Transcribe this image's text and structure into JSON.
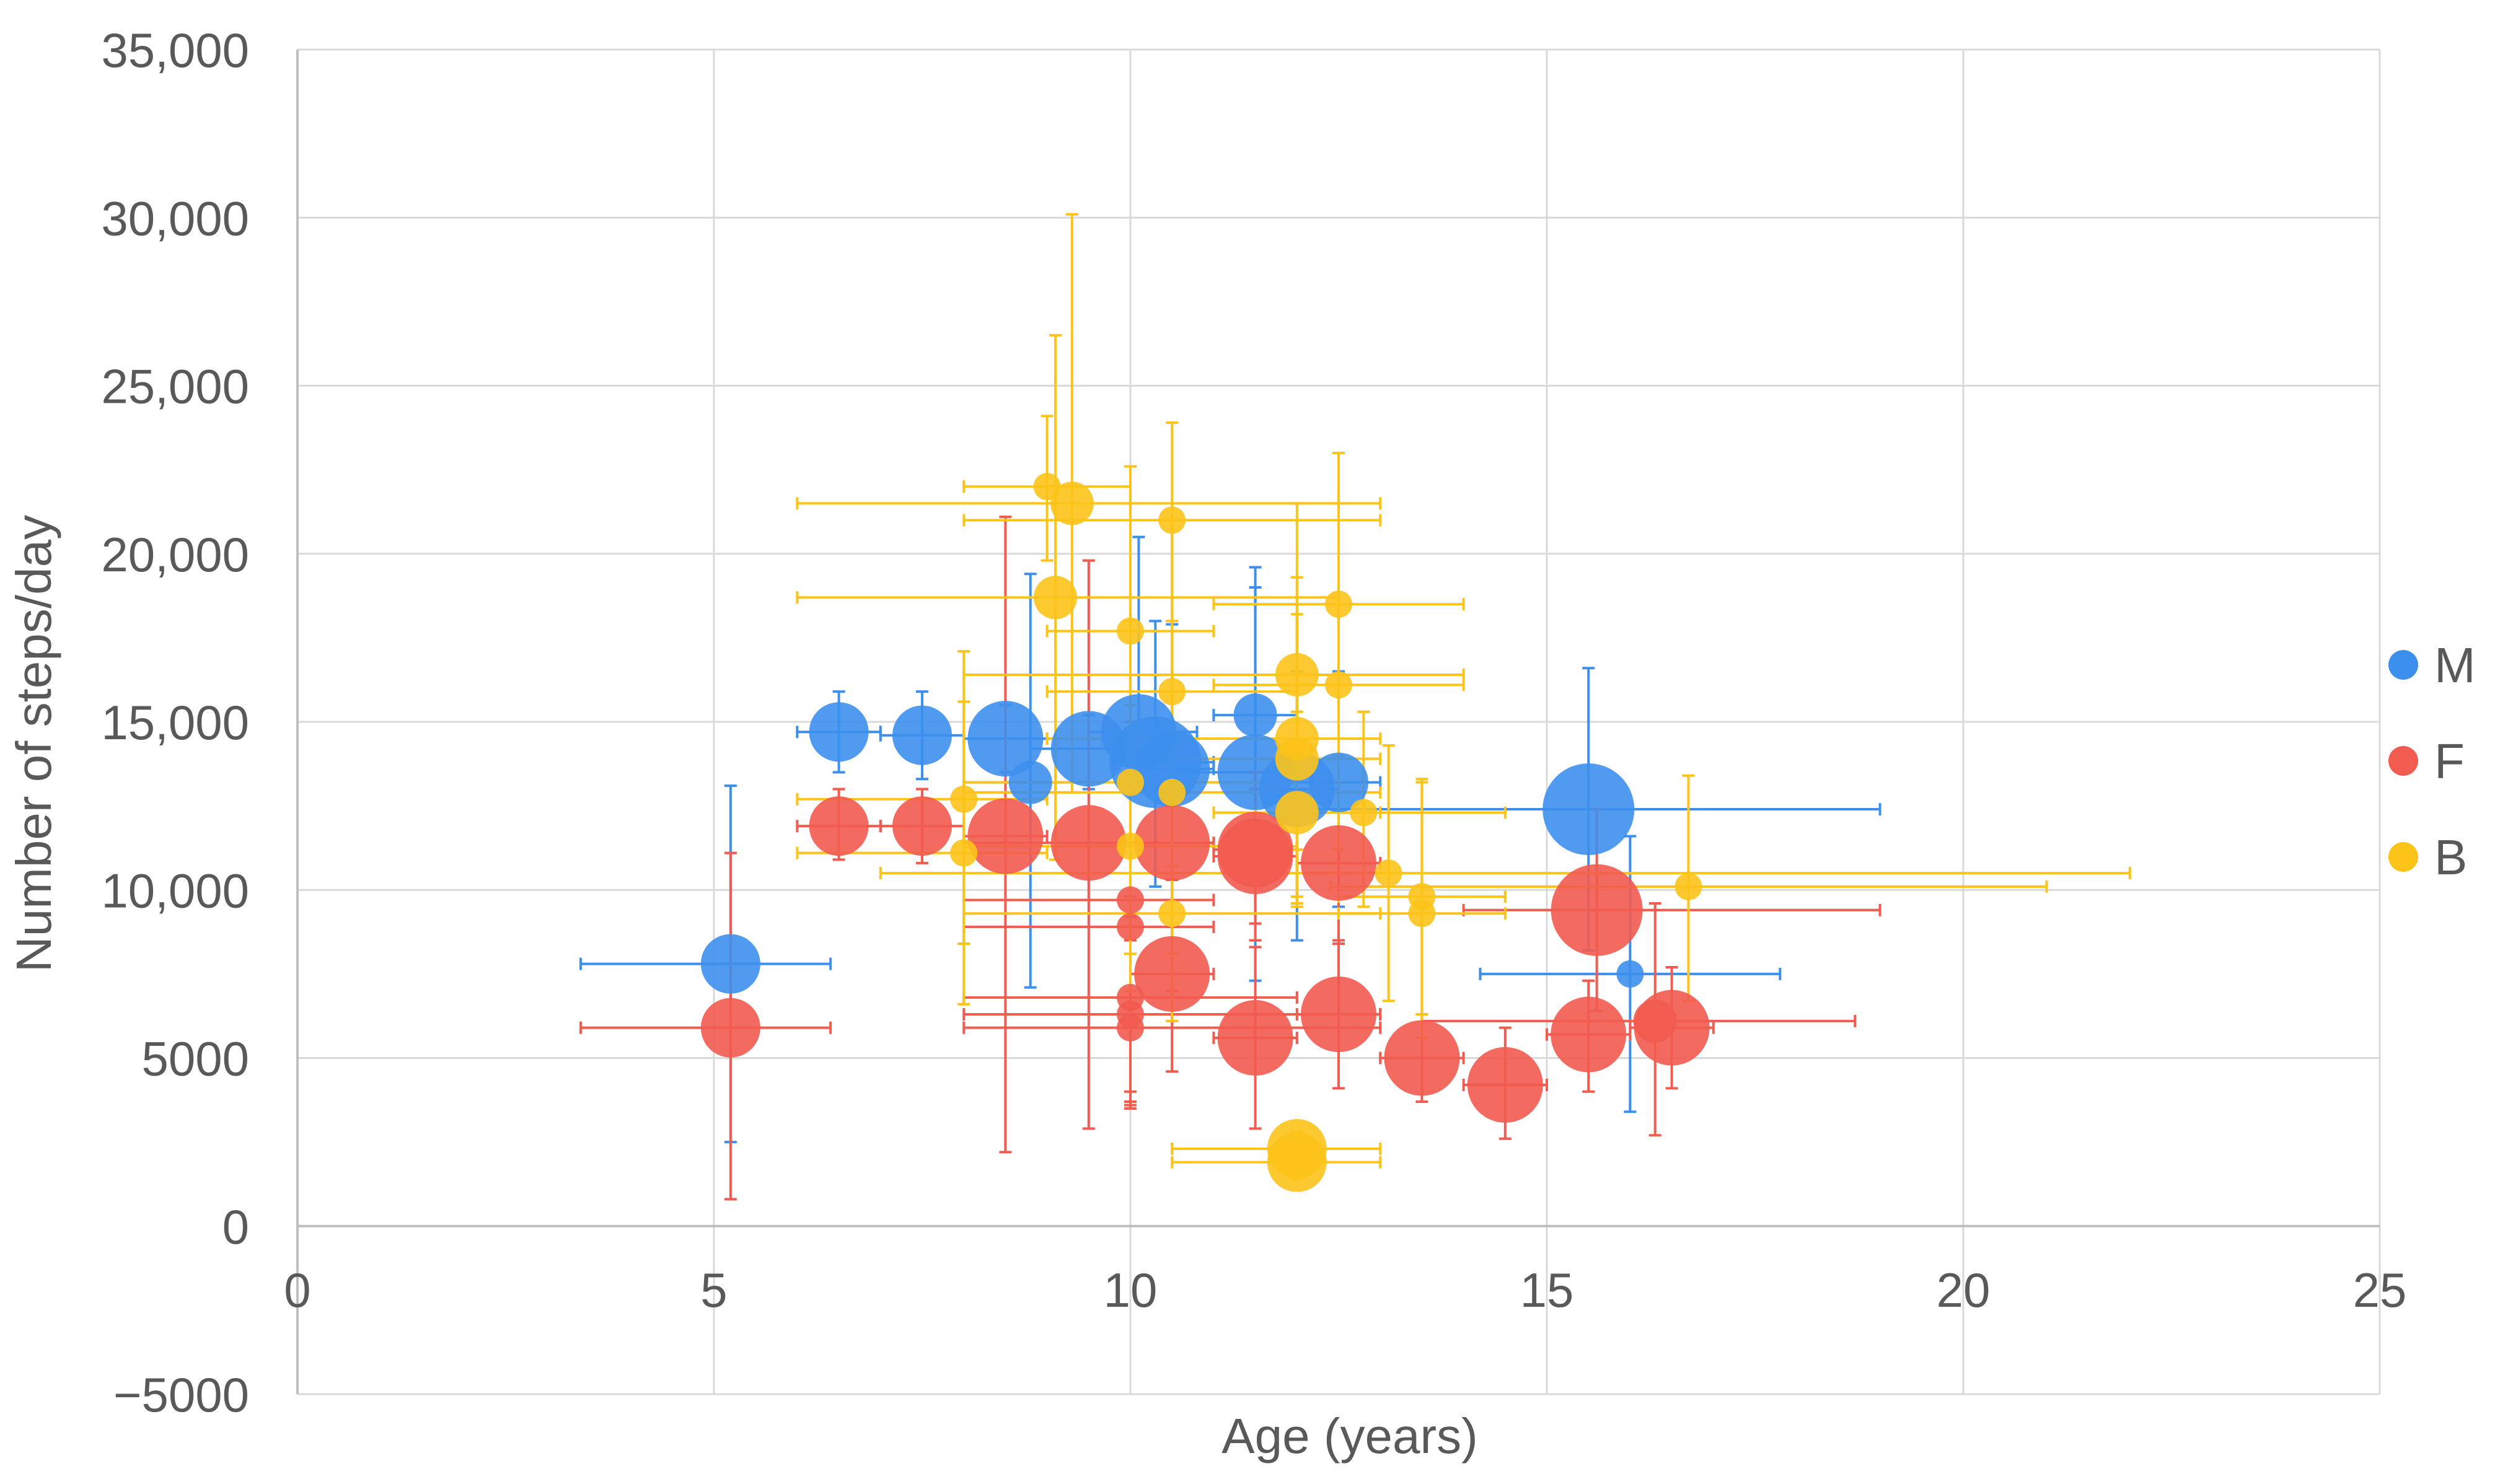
{
  "chart_data": {
    "type": "scatter",
    "title": "",
    "xlabel": "Age (years)",
    "ylabel": "Number of steps/day",
    "xlim": [
      0,
      25
    ],
    "ylim": [
      -5000,
      35000
    ],
    "x_ticks": [
      0,
      5,
      10,
      15,
      20,
      25
    ],
    "x_tick_labels": [
      "0",
      "5",
      "10",
      "15",
      "20",
      "25"
    ],
    "y_ticks": [
      -5000,
      0,
      5000,
      10000,
      15000,
      20000,
      25000,
      30000,
      35000
    ],
    "y_tick_labels": [
      "−5000",
      "0",
      "5000",
      "10,000",
      "15,000",
      "20,000",
      "25,000",
      "30,000",
      "35,000"
    ],
    "grid": true,
    "legend_position": "right",
    "marker": "bubble with x and y error bars",
    "series": [
      {
        "name": "M",
        "color": "#3d8fed",
        "points": [
          {
            "x": 5.2,
            "y": 7800,
            "size": 3,
            "xerr": [
              3.4,
              6.4
            ],
            "yerr": [
              2500,
              13100
            ]
          },
          {
            "x": 6.5,
            "y": 14700,
            "size": 3,
            "xerr": [
              6.0,
              7.0
            ],
            "yerr": [
              13500,
              15900
            ]
          },
          {
            "x": 7.5,
            "y": 14600,
            "size": 3,
            "xerr": [
              7.0,
              8.0
            ],
            "yerr": [
              13300,
              15900
            ]
          },
          {
            "x": 8.5,
            "y": 14500,
            "size": 4,
            "xerr": [
              8.0,
              9.0
            ],
            "yerr": [
              13500,
              15500
            ]
          },
          {
            "x": 8.8,
            "y": 13200,
            "size": 2,
            "xerr": [
              8.0,
              9.5
            ],
            "yerr": [
              7100,
              19400
            ]
          },
          {
            "x": 9.5,
            "y": 14200,
            "size": 4,
            "xerr": [
              8.8,
              10.5
            ],
            "yerr": [
              13000,
              15200
            ]
          },
          {
            "x": 10.1,
            "y": 14700,
            "size": 4,
            "xerr": [
              9.5,
              10.8
            ],
            "yerr": [
              13500,
              20500
            ]
          },
          {
            "x": 10.3,
            "y": 13800,
            "size": 5,
            "xerr": [
              9.8,
              11.0
            ],
            "yerr": [
              10100,
              18000
            ]
          },
          {
            "x": 10.5,
            "y": 13600,
            "size": 4,
            "xerr": [
              10.0,
              11.0
            ],
            "yerr": [
              8900,
              17900
            ]
          },
          {
            "x": 11.5,
            "y": 15200,
            "size": 2,
            "xerr": [
              11.0,
              12.0
            ],
            "yerr": [
              11300,
              19600
            ]
          },
          {
            "x": 11.5,
            "y": 13500,
            "size": 4,
            "xerr": [
              10.5,
              12.0
            ],
            "yerr": [
              7300,
              19000
            ]
          },
          {
            "x": 12.0,
            "y": 13000,
            "size": 4,
            "xerr": [
              11.5,
              12.5
            ],
            "yerr": [
              8500,
              16500
            ]
          },
          {
            "x": 12.5,
            "y": 13200,
            "size": 3,
            "xerr": [
              12.0,
              13.0
            ],
            "yerr": [
              9500,
              16500
            ]
          },
          {
            "x": 15.5,
            "y": 12400,
            "size": 5,
            "xerr": [
              11.8,
              19.0
            ],
            "yerr": [
              8200,
              16600
            ]
          },
          {
            "x": 16.0,
            "y": 7500,
            "size": 1,
            "xerr": [
              14.2,
              17.8
            ],
            "yerr": [
              3400,
              11600
            ]
          }
        ]
      },
      {
        "name": "F",
        "color": "#f25b4f",
        "points": [
          {
            "x": 5.2,
            "y": 5900,
            "size": 3,
            "xerr": [
              3.4,
              6.4
            ],
            "yerr": [
              800,
              11100
            ]
          },
          {
            "x": 6.5,
            "y": 11900,
            "size": 3,
            "xerr": [
              6.0,
              7.0
            ],
            "yerr": [
              10900,
              13000
            ]
          },
          {
            "x": 7.5,
            "y": 11900,
            "size": 3,
            "xerr": [
              7.0,
              8.0
            ],
            "yerr": [
              10800,
              13000
            ]
          },
          {
            "x": 8.5,
            "y": 11600,
            "size": 4,
            "xerr": [
              8.0,
              9.0
            ],
            "yerr": [
              2200,
              21100
            ]
          },
          {
            "x": 9.5,
            "y": 11400,
            "size": 4,
            "xerr": [
              8.0,
              11.0
            ],
            "yerr": [
              2900,
              19800
            ]
          },
          {
            "x": 10.0,
            "y": 9700,
            "size": 1,
            "xerr": [
              8.0,
              11.0
            ],
            "yerr": [
              4000,
              15000
            ]
          },
          {
            "x": 10.0,
            "y": 8900,
            "size": 1,
            "xerr": [
              8.0,
              11.0
            ],
            "yerr": [
              3600,
              14000
            ]
          },
          {
            "x": 10.0,
            "y": 6800,
            "size": 1,
            "xerr": [
              8.0,
              12.0
            ],
            "yerr": [
              3700,
              9800
            ]
          },
          {
            "x": 10.0,
            "y": 6300,
            "size": 1,
            "xerr": [
              8.0,
              13.0
            ],
            "yerr": [
              3500,
              9200
            ]
          },
          {
            "x": 10.0,
            "y": 5900,
            "size": 1,
            "xerr": [
              8.0,
              13.0
            ],
            "yerr": [
              3500,
              8500
            ]
          },
          {
            "x": 10.5,
            "y": 11400,
            "size": 4,
            "xerr": [
              10.0,
              11.0
            ],
            "yerr": [
              7000,
              14700
            ]
          },
          {
            "x": 10.5,
            "y": 7500,
            "size": 4,
            "xerr": [
              10.0,
              11.0
            ],
            "yerr": [
              4600,
              10300
            ]
          },
          {
            "x": 11.5,
            "y": 11200,
            "size": 4,
            "xerr": [
              11.0,
              12.0
            ],
            "yerr": [
              9000,
              13500
            ]
          },
          {
            "x": 11.5,
            "y": 11000,
            "size": 4,
            "xerr": [
              11.0,
              12.0
            ],
            "yerr": [
              8500,
              13000
            ]
          },
          {
            "x": 11.5,
            "y": 5600,
            "size": 4,
            "xerr": [
              11.0,
              12.0
            ],
            "yerr": [
              2900,
              8300
            ]
          },
          {
            "x": 12.5,
            "y": 10800,
            "size": 4,
            "xerr": [
              12.0,
              13.0
            ],
            "yerr": [
              8400,
              13200
            ]
          },
          {
            "x": 12.5,
            "y": 6300,
            "size": 4,
            "xerr": [
              12.0,
              13.0
            ],
            "yerr": [
              4100,
              8500
            ]
          },
          {
            "x": 13.5,
            "y": 5000,
            "size": 4,
            "xerr": [
              13.0,
              14.0
            ],
            "yerr": [
              3700,
              6300
            ]
          },
          {
            "x": 14.5,
            "y": 4200,
            "size": 4,
            "xerr": [
              14.0,
              15.0
            ],
            "yerr": [
              2600,
              5900
            ]
          },
          {
            "x": 15.5,
            "y": 5700,
            "size": 4,
            "xerr": [
              15.0,
              16.0
            ],
            "yerr": [
              4000,
              7300
            ]
          },
          {
            "x": 15.6,
            "y": 9400,
            "size": 5,
            "xerr": [
              14.0,
              19.0
            ],
            "yerr": [
              6400,
              12400
            ]
          },
          {
            "x": 16.3,
            "y": 6100,
            "size": 2,
            "xerr": [
              13.5,
              18.7
            ],
            "yerr": [
              2700,
              9600
            ]
          },
          {
            "x": 16.5,
            "y": 5900,
            "size": 4,
            "xerr": [
              16.0,
              17.0
            ],
            "yerr": [
              4100,
              7700
            ]
          }
        ]
      },
      {
        "name": "B",
        "color": "#fcc319",
        "points": [
          {
            "x": 8.0,
            "y": 12700,
            "size": 1,
            "xerr": [
              6.0,
              9.0
            ],
            "yerr": [
              8400,
              17100
            ]
          },
          {
            "x": 8.0,
            "y": 11100,
            "size": 1,
            "xerr": [
              6.0,
              9.0
            ],
            "yerr": [
              6600,
              15600
            ]
          },
          {
            "x": 9.0,
            "y": 22000,
            "size": 1,
            "xerr": [
              8.0,
              10.0
            ],
            "yerr": [
              19800,
              24100
            ]
          },
          {
            "x": 9.1,
            "y": 18700,
            "size": 2,
            "xerr": [
              6.0,
              12.5
            ],
            "yerr": [
              10900,
              26500
            ]
          },
          {
            "x": 9.3,
            "y": 21500,
            "size": 2,
            "xerr": [
              6.0,
              13.0
            ],
            "yerr": [
              12900,
              30100
            ]
          },
          {
            "x": 10.0,
            "y": 17700,
            "size": 1,
            "xerr": [
              9.0,
              11.0
            ],
            "yerr": [
              12900,
              22600
            ]
          },
          {
            "x": 10.0,
            "y": 13200,
            "size": 1,
            "xerr": [
              8.0,
              12.0
            ],
            "yerr": [
              8100,
              18000
            ]
          },
          {
            "x": 10.0,
            "y": 11300,
            "size": 1,
            "xerr": [
              8.0,
              12.0
            ],
            "yerr": [
              7000,
              15500
            ]
          },
          {
            "x": 10.5,
            "y": 21000,
            "size": 1,
            "xerr": [
              8.0,
              13.0
            ],
            "yerr": [
              18000,
              23900
            ]
          },
          {
            "x": 10.5,
            "y": 15900,
            "size": 1,
            "xerr": [
              9.0,
              12.0
            ],
            "yerr": [
              10700,
              21000
            ]
          },
          {
            "x": 10.5,
            "y": 12900,
            "size": 1,
            "xerr": [
              8.0,
              13.0
            ],
            "yerr": [
              8100,
              17700
            ]
          },
          {
            "x": 10.5,
            "y": 9300,
            "size": 1,
            "xerr": [
              8.0,
              13.0
            ],
            "yerr": [
              6100,
              12500
            ]
          },
          {
            "x": 12.0,
            "y": 16400,
            "size": 2,
            "xerr": [
              8.0,
              14.0
            ],
            "yerr": [
              11200,
              21500
            ]
          },
          {
            "x": 12.0,
            "y": 14500,
            "size": 2,
            "xerr": [
              9.0,
              13.0
            ],
            "yerr": [
              9800,
              19300
            ]
          },
          {
            "x": 12.0,
            "y": 13900,
            "size": 2,
            "xerr": [
              10.0,
              13.0
            ],
            "yerr": [
              9600,
              18200
            ]
          },
          {
            "x": 12.0,
            "y": 12300,
            "size": 2,
            "xerr": [
              11.0,
              13.0
            ],
            "yerr": [
              9500,
              15300
            ]
          },
          {
            "x": 12.0,
            "y": 2300,
            "size": 3,
            "xerr": [
              10.5,
              13.0
            ],
            "yerr": [
              1800,
              2800
            ]
          },
          {
            "x": 12.0,
            "y": 1900,
            "size": 3,
            "xerr": [
              10.5,
              13.0
            ],
            "yerr": [
              1400,
              2400
            ]
          },
          {
            "x": 12.5,
            "y": 18500,
            "size": 1,
            "xerr": [
              11.0,
              14.0
            ],
            "yerr": [
              14000,
              23000
            ]
          },
          {
            "x": 12.5,
            "y": 16100,
            "size": 1,
            "xerr": [
              11.0,
              14.0
            ],
            "yerr": [
              11200,
              21000
            ]
          },
          {
            "x": 12.8,
            "y": 12300,
            "size": 1,
            "xerr": [
              11.5,
              14.5
            ],
            "yerr": [
              9500,
              15300
            ]
          },
          {
            "x": 13.1,
            "y": 10500,
            "size": 1,
            "xerr": [
              7.0,
              22.0
            ],
            "yerr": [
              6700,
              14300
            ]
          },
          {
            "x": 13.5,
            "y": 9800,
            "size": 1,
            "xerr": [
              12.5,
              14.5
            ],
            "yerr": [
              6300,
              13300
            ]
          },
          {
            "x": 13.5,
            "y": 9300,
            "size": 1,
            "xerr": [
              12.5,
              14.5
            ],
            "yerr": [
              5600,
              13200
            ]
          },
          {
            "x": 16.7,
            "y": 10100,
            "size": 1,
            "xerr": [
              12.4,
              21.0
            ],
            "yerr": [
              6700,
              13400
            ]
          }
        ]
      }
    ]
  }
}
